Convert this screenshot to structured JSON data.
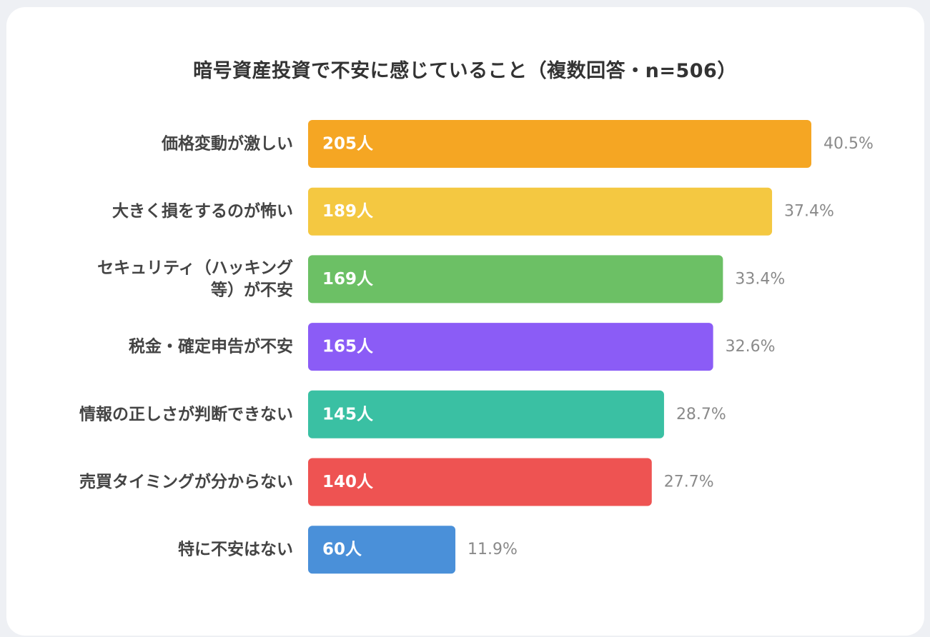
{
  "title": "暗号資産投資で不安に感じていること（複数回答・n=506）",
  "chart_data": {
    "type": "bar",
    "orientation": "horizontal",
    "title": "暗号資産投資で不安に感じていること（複数回答・n=506）",
    "categories": [
      [
        "価格変動が激しい"
      ],
      [
        "大きく損をするのが怖い"
      ],
      [
        "セキュリティ（ハッキング",
        "等）が不安"
      ],
      [
        "税金・確定申告が不安"
      ],
      [
        "情報の正しさが判断できない"
      ],
      [
        "売買タイミングが分からない"
      ],
      [
        "特に不安はない"
      ]
    ],
    "value_labels": [
      "205人",
      "189人",
      "169人",
      "165人",
      "145人",
      "140人",
      "60人"
    ],
    "percent_labels": [
      "40.5%",
      "37.4%",
      "33.4%",
      "32.6%",
      "28.7%",
      "27.7%",
      "11.9%"
    ],
    "values": [
      205,
      189,
      169,
      165,
      145,
      140,
      60
    ],
    "percents": [
      40.5,
      37.4,
      33.4,
      32.6,
      28.7,
      27.7,
      11.9
    ],
    "colors": [
      "#f5a623",
      "#f4c841",
      "#6cc065",
      "#8b5cf6",
      "#3ac0a3",
      "#ee5352",
      "#4a90d9"
    ],
    "legend": "none",
    "grid": false
  }
}
